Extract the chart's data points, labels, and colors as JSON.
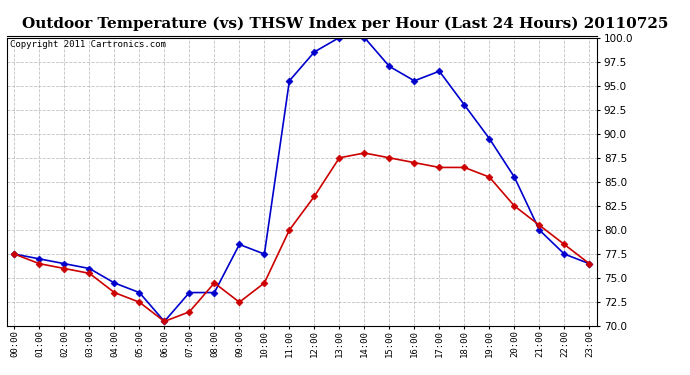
{
  "title": "Outdoor Temperature (vs) THSW Index per Hour (Last 24 Hours) 20110725",
  "copyright": "Copyright 2011 Cartronics.com",
  "hours": [
    0,
    1,
    2,
    3,
    4,
    5,
    6,
    7,
    8,
    9,
    10,
    11,
    12,
    13,
    14,
    15,
    16,
    17,
    18,
    19,
    20,
    21,
    22,
    23
  ],
  "hour_labels": [
    "00:00",
    "01:00",
    "02:00",
    "03:00",
    "04:00",
    "05:00",
    "06:00",
    "07:00",
    "08:00",
    "09:00",
    "10:00",
    "11:00",
    "12:00",
    "13:00",
    "14:00",
    "15:00",
    "16:00",
    "17:00",
    "18:00",
    "19:00",
    "20:00",
    "21:00",
    "22:00",
    "23:00"
  ],
  "temp_outdoor": [
    77.5,
    76.5,
    76.0,
    75.5,
    73.5,
    72.5,
    70.5,
    71.5,
    74.5,
    72.5,
    74.5,
    80.0,
    83.5,
    87.5,
    88.0,
    87.5,
    87.0,
    86.5,
    86.5,
    85.5,
    82.5,
    80.5,
    78.5,
    76.5
  ],
  "thsw_index": [
    77.5,
    77.0,
    76.5,
    76.0,
    74.5,
    73.5,
    70.5,
    73.5,
    73.5,
    78.5,
    77.5,
    95.5,
    98.5,
    100.0,
    100.0,
    97.0,
    95.5,
    96.5,
    93.0,
    89.5,
    85.5,
    80.0,
    77.5,
    76.5
  ],
  "temp_color": "#cc0000",
  "thsw_color": "#0000cc",
  "ylim": [
    70.0,
    100.0
  ],
  "yticks": [
    70.0,
    72.5,
    75.0,
    77.5,
    80.0,
    82.5,
    85.0,
    87.5,
    90.0,
    92.5,
    95.0,
    97.5,
    100.0
  ],
  "bg_color": "#ffffff",
  "grid_color": "#bbbbbb",
  "title_fontsize": 11,
  "copyright_fontsize": 6.5,
  "marker": "D",
  "markersize": 3.5,
  "linewidth": 1.2
}
